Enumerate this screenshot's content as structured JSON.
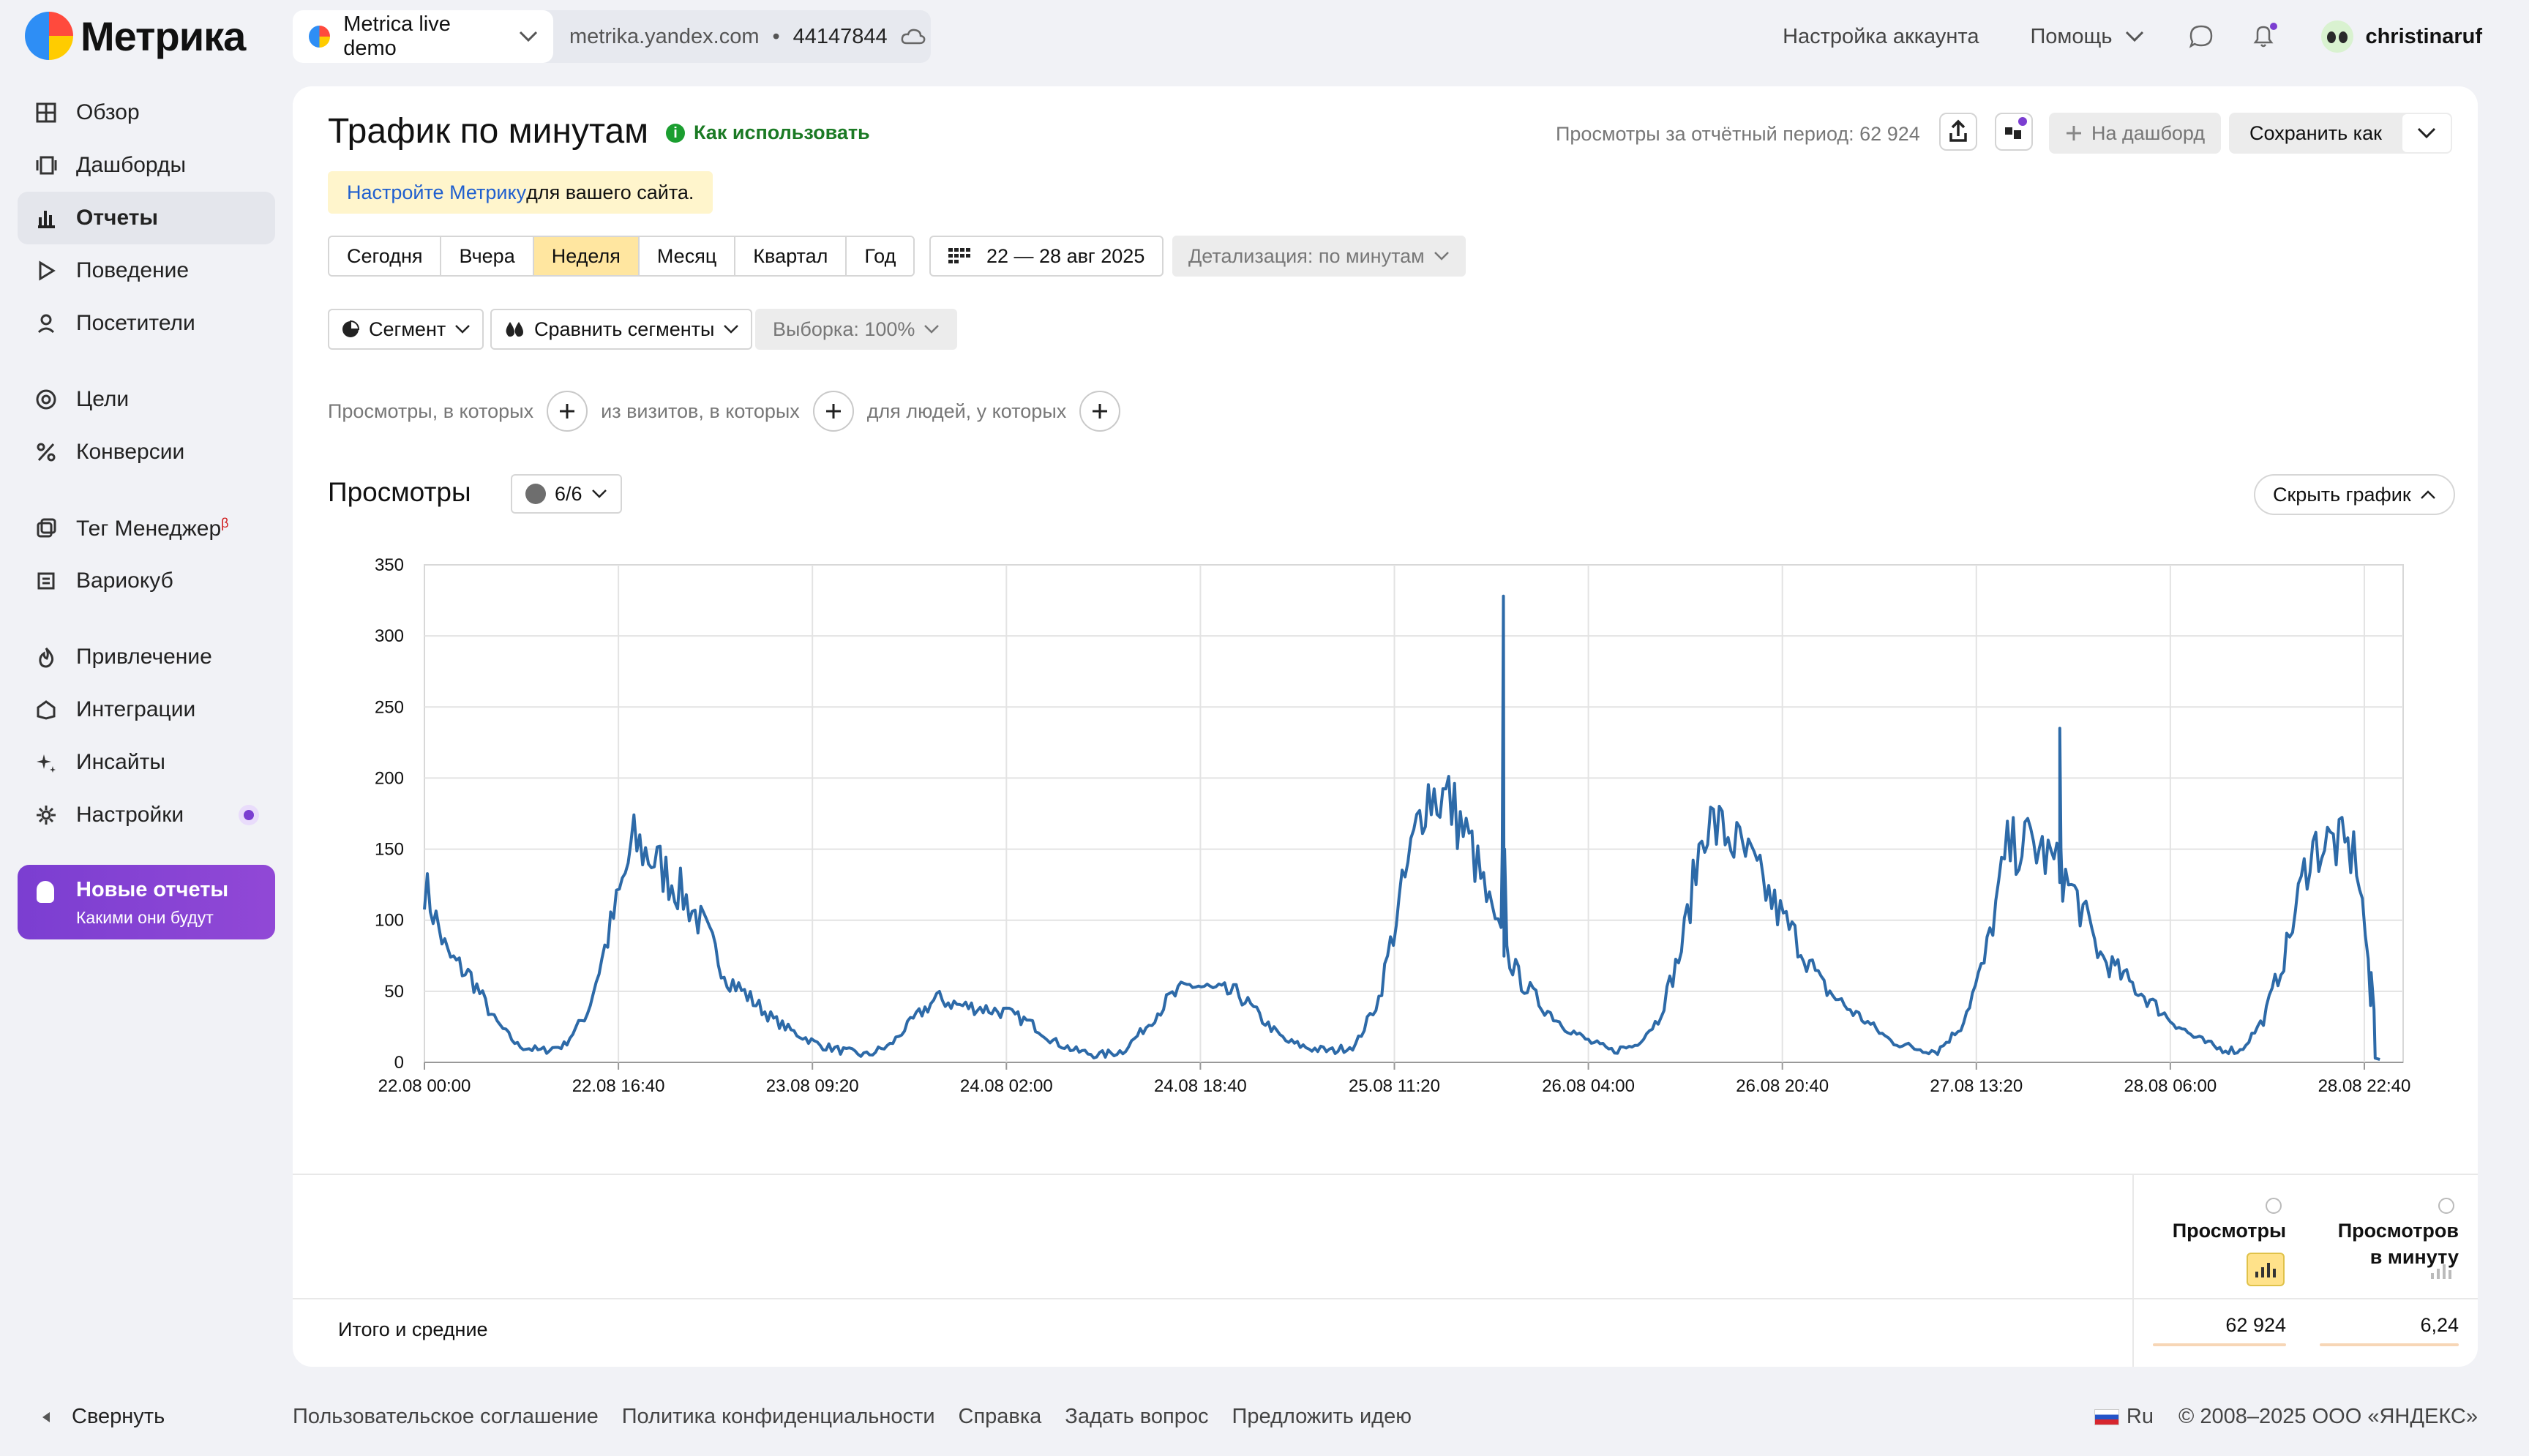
{
  "logo": {
    "text": "Метрика"
  },
  "counter": {
    "name": "Metrica live demo",
    "domain": "metrika.yandex.com",
    "id": "44147844"
  },
  "topnav": {
    "account": "Настройка аккаунта",
    "help": "Помощь",
    "user": "christinaruf"
  },
  "sidebar": {
    "items": [
      {
        "label": "Обзор",
        "icon": "grid-icon"
      },
      {
        "label": "Дашборды",
        "icon": "dashboards-icon"
      },
      {
        "label": "Отчеты",
        "icon": "reports-icon",
        "active": true
      },
      {
        "label": "Поведение",
        "icon": "play-icon"
      },
      {
        "label": "Посетители",
        "icon": "user-icon"
      },
      {
        "label": "Цели",
        "icon": "target-icon"
      },
      {
        "label": "Конверсии",
        "icon": "percent-icon"
      },
      {
        "label": "Тег Менеджер",
        "icon": "tag-icon",
        "badge": "β"
      },
      {
        "label": "Вариокуб",
        "icon": "variocube-icon"
      },
      {
        "label": "Привлечение",
        "icon": "flame-icon"
      },
      {
        "label": "Интеграции",
        "icon": "puzzle-icon"
      },
      {
        "label": "Инсайты",
        "icon": "sparkle-icon"
      },
      {
        "label": "Настройки",
        "icon": "gear-icon"
      }
    ],
    "promo": {
      "title": "Новые отчеты",
      "subtitle": "Какими они будут"
    },
    "collapse": "Свернуть"
  },
  "report": {
    "title": "Трафик по минутам",
    "howto": "Как использовать",
    "setup_link": "Настройте Метрику",
    "setup_rest": " для вашего сайта.",
    "views_total": "Просмотры за отчётный период: 62 924",
    "to_dashboard": "На дашборд",
    "save_as": "Сохранить как"
  },
  "period": {
    "options": [
      "Сегодня",
      "Вчера",
      "Неделя",
      "Месяц",
      "Квартал",
      "Год"
    ],
    "selected": "Неделя",
    "range": "22 — 28 авг 2025",
    "detail": "Детализация: по минутам"
  },
  "segments": {
    "segment": "Сегмент",
    "compare": "Сравнить сегменты",
    "sample": "Выборка: 100%"
  },
  "filters": {
    "views": "Просмотры, в которых",
    "visits": "из визитов, в которых",
    "people": "для людей, у которых"
  },
  "chart_section": {
    "title": "Просмотры",
    "series_count": "6/6",
    "hide": "Скрыть график"
  },
  "chart_data": {
    "type": "line",
    "ylim": [
      0,
      350
    ],
    "yticks": [
      0,
      50,
      100,
      150,
      200,
      250,
      300,
      350
    ],
    "xticks": [
      "22.08 00:00",
      "22.08 16:40",
      "23.08 09:20",
      "24.08 02:00",
      "24.08 18:40",
      "25.08 11:20",
      "26.08 04:00",
      "26.08 20:40",
      "27.08 13:20",
      "28.08 06:00",
      "28.08 22:40"
    ],
    "x_hours": [
      0,
      2,
      4,
      6,
      8,
      10,
      12,
      14,
      16,
      18,
      20,
      22,
      24,
      26,
      28,
      30,
      32,
      34,
      36,
      38,
      40,
      42,
      44,
      46,
      48,
      50,
      52,
      54,
      56,
      58,
      60,
      62,
      64,
      66,
      68,
      70,
      72,
      74,
      76,
      78,
      80,
      82,
      84,
      86,
      88,
      90,
      92,
      94,
      96,
      98,
      100,
      102,
      104,
      106,
      108,
      110,
      112,
      114,
      116,
      118,
      120,
      122,
      124,
      126,
      128,
      130,
      132,
      134,
      136,
      138,
      140,
      142,
      144,
      146,
      148,
      150,
      152,
      154,
      156,
      158,
      160,
      162,
      164,
      166,
      168
    ],
    "values": [
      125,
      75,
      60,
      30,
      12,
      8,
      12,
      35,
      95,
      155,
      140,
      120,
      95,
      60,
      45,
      30,
      20,
      12,
      8,
      5,
      12,
      30,
      45,
      40,
      38,
      35,
      28,
      15,
      8,
      5,
      8,
      25,
      45,
      55,
      50,
      48,
      30,
      15,
      10,
      8,
      12,
      45,
      120,
      190,
      185,
      150,
      95,
      60,
      40,
      25,
      15,
      8,
      12,
      30,
      80,
      170,
      160,
      140,
      110,
      85,
      55,
      40,
      28,
      15,
      10,
      8,
      25,
      70,
      150,
      155,
      140,
      115,
      75,
      60,
      45,
      30,
      18,
      10,
      8,
      30,
      80,
      150,
      155,
      145,
      2
    ],
    "spikes": [
      {
        "x_hours": 140.5,
        "value": 235
      },
      {
        "x_hours": 92.7,
        "value": 328
      }
    ]
  },
  "table": {
    "col1": "Просмотры",
    "col2_line1": "Просмотров",
    "col2_line2": "в минуту",
    "total_label": "Итого и средние",
    "total_views": "62 924",
    "total_per_min": "6,24"
  },
  "footer": {
    "links": [
      "Пользовательское соглашение",
      "Политика конфиденциальности",
      "Справка",
      "Задать вопрос",
      "Предложить идею"
    ],
    "lang": "Ru",
    "copyright": "© 2008–2025 ООО «ЯНДЕКС»"
  },
  "colors": {
    "line": "#2d6aa8",
    "accent_purple": "#7b3ed1",
    "period_selected": "#ffe6a0"
  }
}
